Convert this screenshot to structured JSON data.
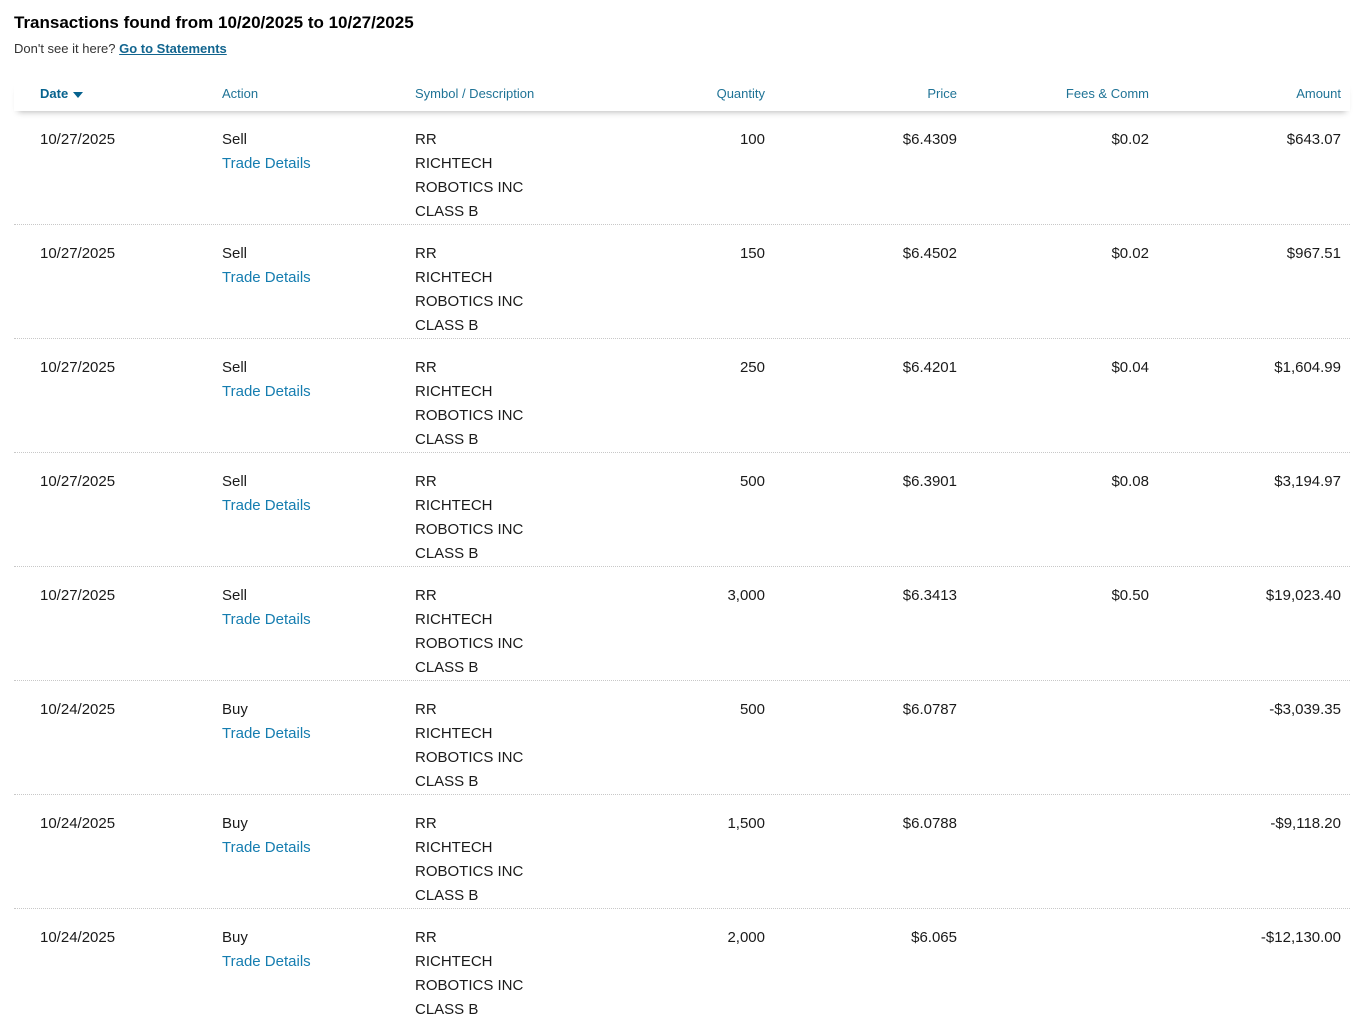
{
  "page": {
    "title": "Transactions found from 10/20/2025 to 10/27/2025",
    "subtitle_text": "Don't see it here?",
    "statements_link_label": "Go to Statements"
  },
  "table": {
    "columns": [
      {
        "label": "Date",
        "sort": "desc",
        "sort_icon": "triangle-down"
      },
      {
        "label": "Action"
      },
      {
        "label": "Symbol / Description"
      },
      {
        "label": "Quantity"
      },
      {
        "label": "Price"
      },
      {
        "label": "Fees & Comm"
      },
      {
        "label": "Amount"
      }
    ],
    "trade_details_label": "Trade Details",
    "rows": [
      {
        "date": "10/27/2025",
        "action": "Sell",
        "symbol": "RR",
        "description": "RICHTECH ROBOTICS INC CLASS B",
        "quantity": "100",
        "price": "$6.4309",
        "fees": "$0.02",
        "amount": "$643.07"
      },
      {
        "date": "10/27/2025",
        "action": "Sell",
        "symbol": "RR",
        "description": "RICHTECH ROBOTICS INC CLASS B",
        "quantity": "150",
        "price": "$6.4502",
        "fees": "$0.02",
        "amount": "$967.51"
      },
      {
        "date": "10/27/2025",
        "action": "Sell",
        "symbol": "RR",
        "description": "RICHTECH ROBOTICS INC CLASS B",
        "quantity": "250",
        "price": "$6.4201",
        "fees": "$0.04",
        "amount": "$1,604.99"
      },
      {
        "date": "10/27/2025",
        "action": "Sell",
        "symbol": "RR",
        "description": "RICHTECH ROBOTICS INC CLASS B",
        "quantity": "500",
        "price": "$6.3901",
        "fees": "$0.08",
        "amount": "$3,194.97"
      },
      {
        "date": "10/27/2025",
        "action": "Sell",
        "symbol": "RR",
        "description": "RICHTECH ROBOTICS INC CLASS B",
        "quantity": "3,000",
        "price": "$6.3413",
        "fees": "$0.50",
        "amount": "$19,023.40"
      },
      {
        "date": "10/24/2025",
        "action": "Buy",
        "symbol": "RR",
        "description": "RICHTECH ROBOTICS INC CLASS B",
        "quantity": "500",
        "price": "$6.0787",
        "fees": "",
        "amount": "-$3,039.35"
      },
      {
        "date": "10/24/2025",
        "action": "Buy",
        "symbol": "RR",
        "description": "RICHTECH ROBOTICS INC CLASS B",
        "quantity": "1,500",
        "price": "$6.0788",
        "fees": "",
        "amount": "-$9,118.20"
      },
      {
        "date": "10/24/2025",
        "action": "Buy",
        "symbol": "RR",
        "description": "RICHTECH ROBOTICS INC CLASS B",
        "quantity": "2,000",
        "price": "$6.065",
        "fees": "",
        "amount": "-$12,130.00"
      }
    ]
  },
  "colors": {
    "header_link_blue": "#1f7396",
    "sorted_header_blue": "#06628e",
    "trade_link_blue": "#157db0",
    "statements_link_blue": "#12658f"
  }
}
